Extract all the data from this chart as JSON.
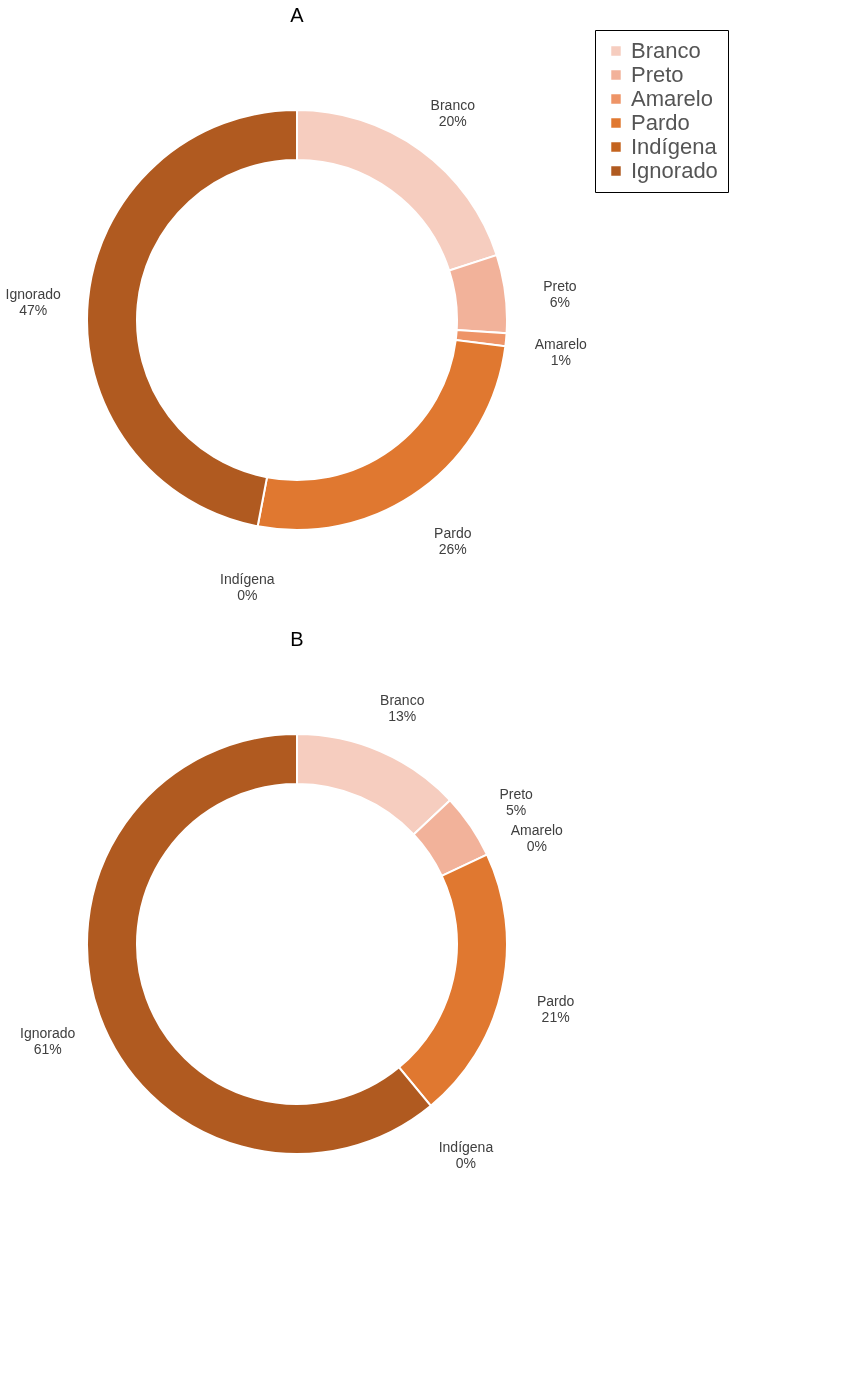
{
  "chart_data": [
    {
      "type": "donut",
      "title": "A",
      "categories": [
        "Branco",
        "Preto",
        "Amarelo",
        "Pardo",
        "Indígena",
        "Ignorado"
      ],
      "values": [
        20,
        6,
        1,
        26,
        0,
        47
      ],
      "value_labels": [
        "20%",
        "6%",
        "1%",
        "26%",
        "0%",
        "47%"
      ],
      "colors": [
        "#f6cdbf",
        "#f2b29a",
        "#ee9467",
        "#e07830",
        "#c4641f",
        "#b05a20"
      ],
      "legend": "right"
    },
    {
      "type": "donut",
      "title": "B",
      "categories": [
        "Branco",
        "Preto",
        "Amarelo",
        "Pardo",
        "Indígena",
        "Ignorado"
      ],
      "values": [
        13,
        5,
        0,
        21,
        0,
        61
      ],
      "value_labels": [
        "13%",
        "5%",
        "0%",
        "21%",
        "0%",
        "61%"
      ],
      "colors": [
        "#f6cdbf",
        "#f2b29a",
        "#ee9467",
        "#e07830",
        "#c4641f",
        "#b05a20"
      ],
      "legend": false
    }
  ]
}
